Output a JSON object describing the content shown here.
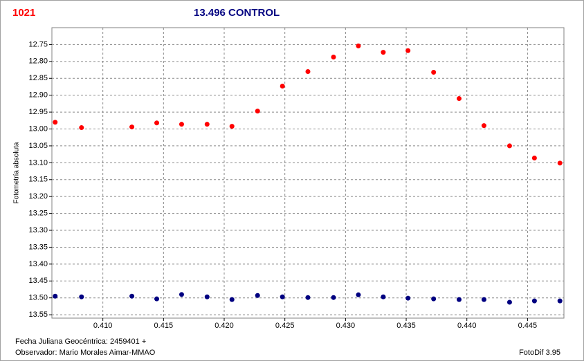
{
  "chart_data": {
    "type": "scatter",
    "label": "1021",
    "title": "13.496 CONTROL",
    "y_label": "Fotometría absoluta",
    "footer_left": [
      "Fecha Juliana Geocéntrica: 2459401 +",
      "Observador: Mario Morales Aimar-MMAO"
    ],
    "footer_right": "FotoDif 3.95",
    "x": [
      0.40607,
      0.40824,
      0.41239,
      0.41444,
      0.41649,
      0.41859,
      0.42064,
      0.42275,
      0.4248,
      0.4269,
      0.42901,
      0.43106,
      0.43311,
      0.43515,
      0.43726,
      0.43936,
      0.44141,
      0.44352,
      0.44557,
      0.44767
    ],
    "series": [
      {
        "color": "#ff0000",
        "values": [
          12.98,
          12.996,
          12.994,
          12.982,
          12.986,
          12.986,
          12.992,
          12.947,
          12.873,
          12.83,
          12.787,
          12.754,
          12.773,
          12.768,
          12.832,
          12.91,
          12.99,
          13.05,
          13.086,
          13.101
        ]
      },
      {
        "color": "#000080",
        "values": [
          13.495,
          13.497,
          13.495,
          13.503,
          13.49,
          13.497,
          13.505,
          13.493,
          13.497,
          13.499,
          13.499,
          13.491,
          13.497,
          13.501,
          13.503,
          13.505,
          13.505,
          13.513,
          13.509,
          13.509
        ]
      }
    ],
    "xlim": [
      0.4058,
      0.448
    ],
    "ylim": [
      12.7,
      13.56
    ],
    "y_inverted": true,
    "grid": true,
    "xticks": [
      {
        "value": 0.41,
        "label": "0.410"
      },
      0.415,
      {
        "value": 0.42,
        "label": "0.420"
      },
      0.425,
      {
        "value": 0.43,
        "label": "0.430"
      },
      0.435,
      {
        "value": 0.44,
        "label": "0.440"
      },
      0.445
    ],
    "yticks": [
      12.75,
      {
        "value": 12.8,
        "label": "12.80"
      },
      12.85,
      {
        "value": 12.9,
        "label": "12.90"
      },
      12.95,
      {
        "value": 13.0,
        "label": "13.00"
      },
      13.05,
      {
        "value": 13.1,
        "label": "13.10"
      },
      13.15,
      {
        "value": 13.2,
        "label": "13.20"
      },
      13.25,
      {
        "value": 13.3,
        "label": "13.30"
      },
      13.35,
      {
        "value": 13.4,
        "label": "13.40"
      },
      13.45,
      {
        "value": 13.5,
        "label": "13.50"
      },
      13.55
    ]
  }
}
